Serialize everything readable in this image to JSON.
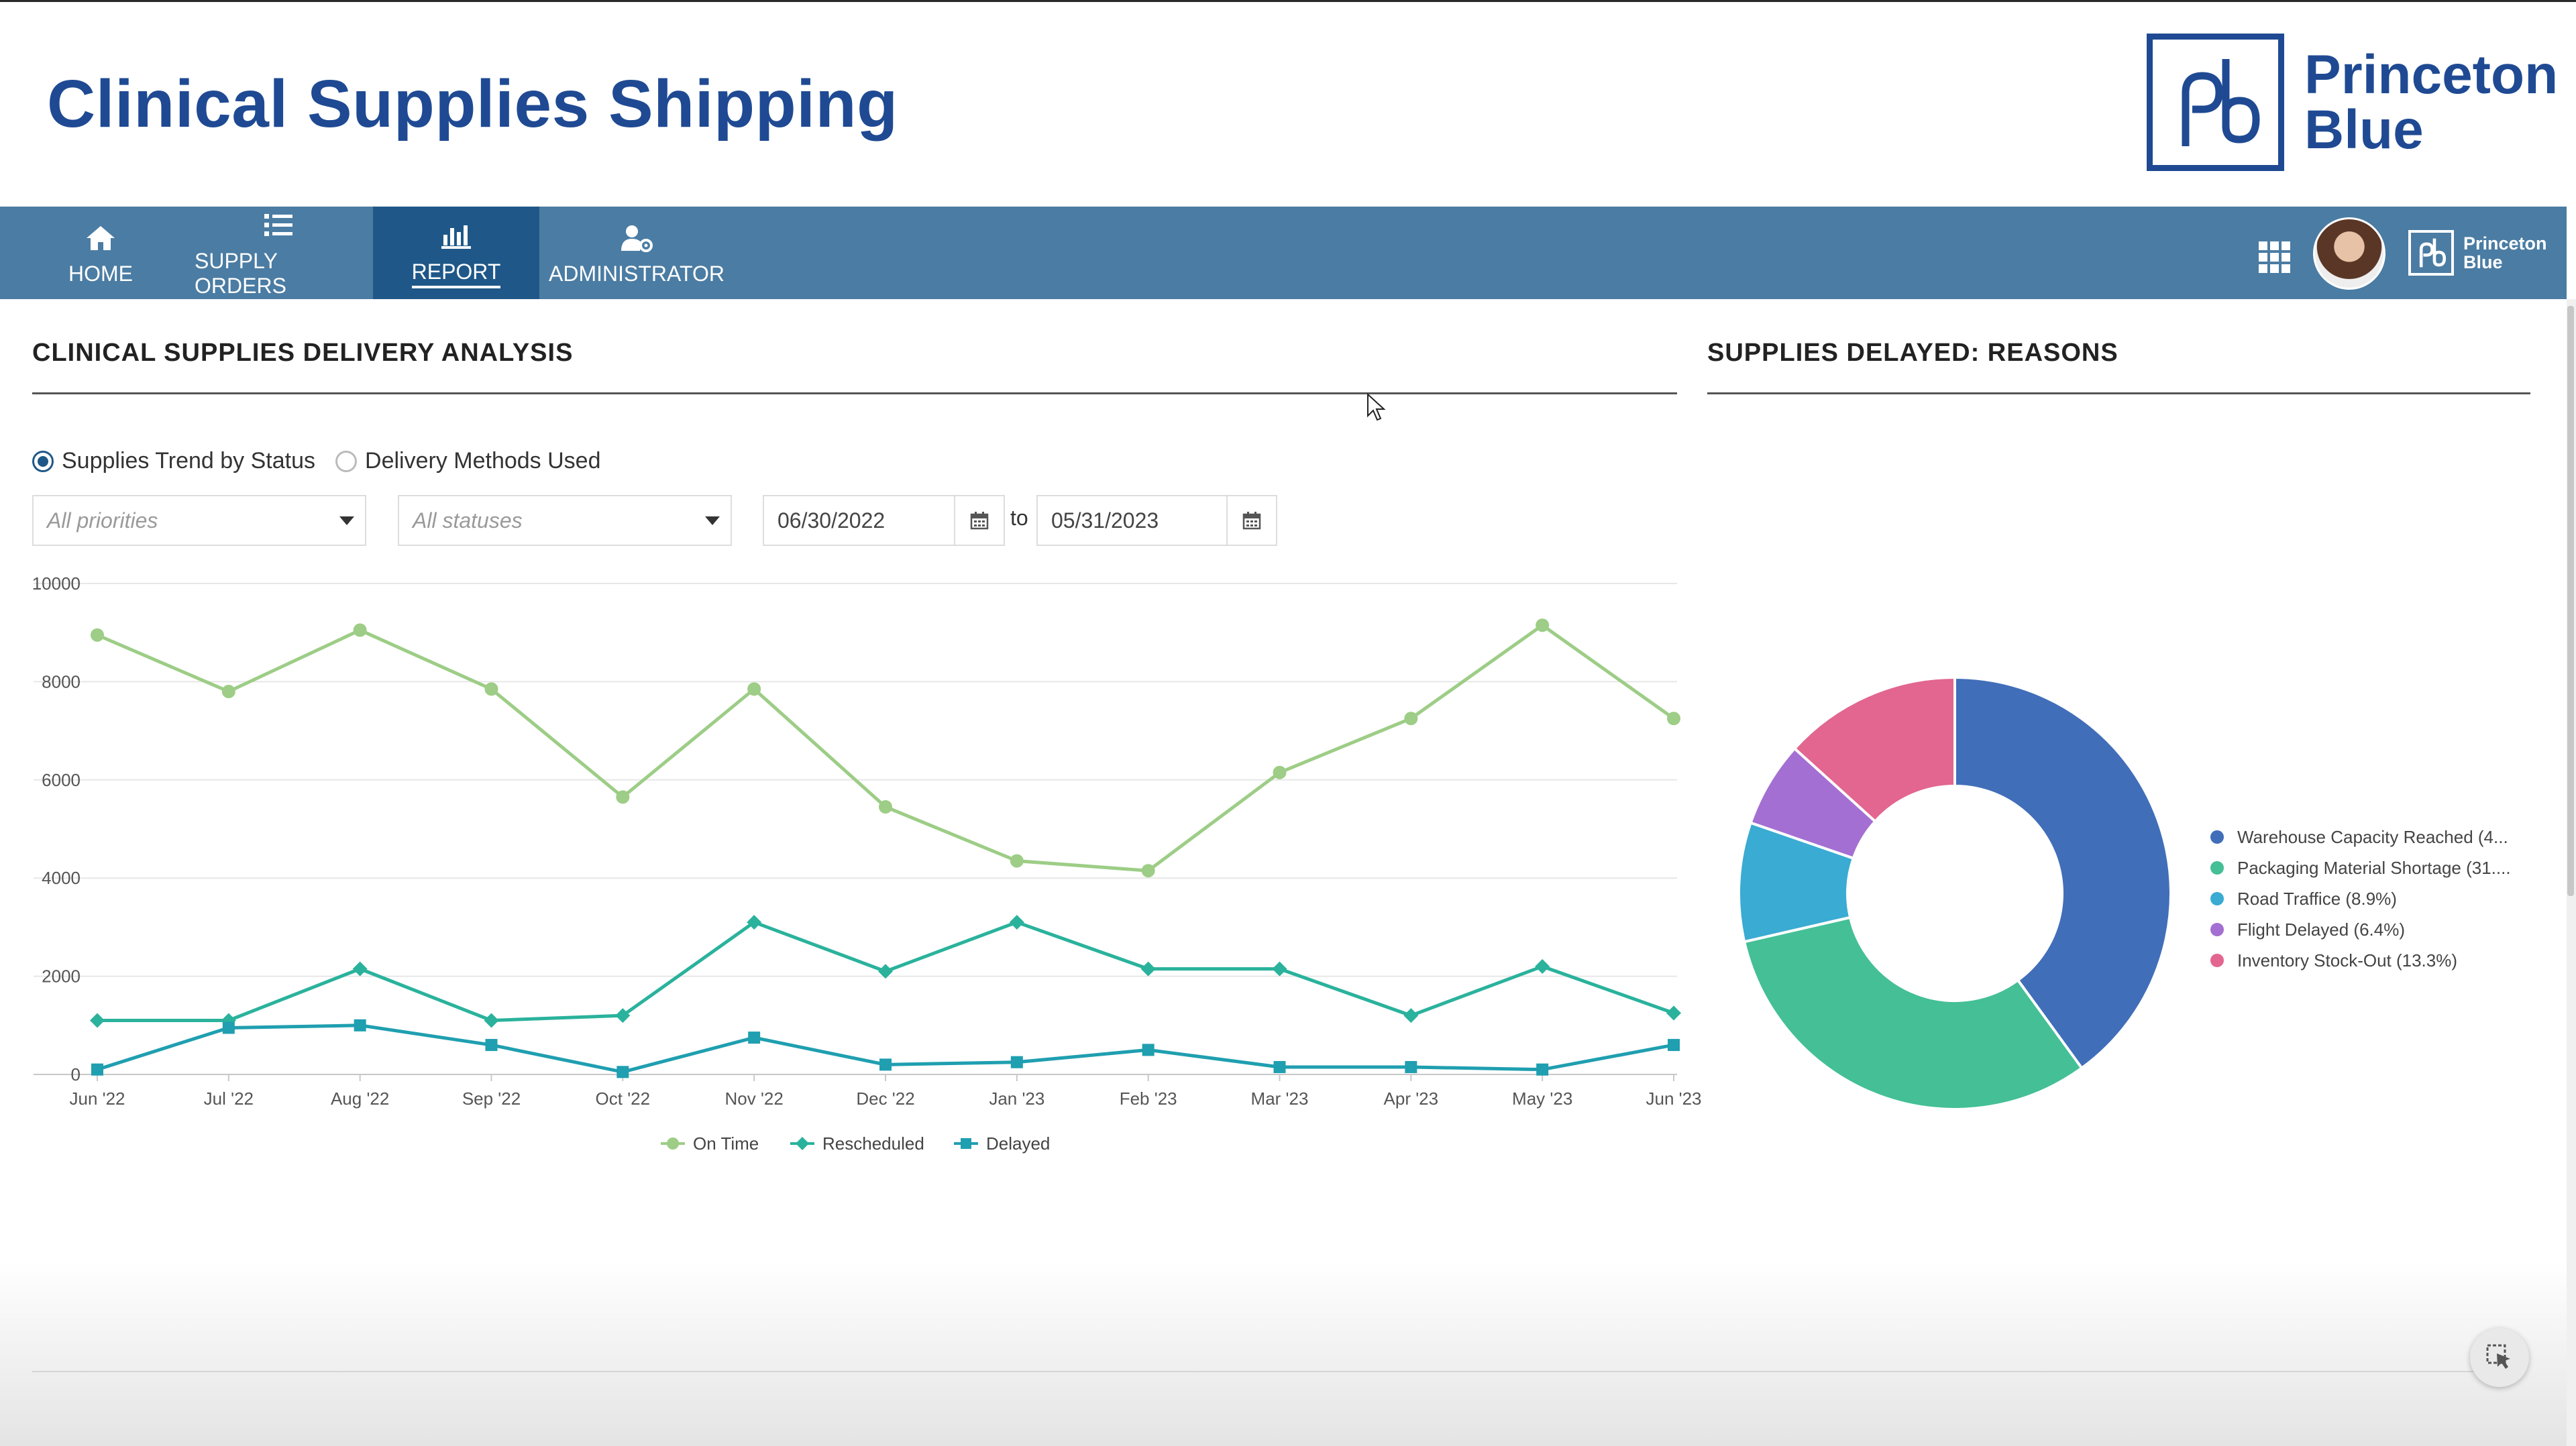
{
  "app": {
    "title": "Clinical Supplies Shipping",
    "brand": [
      "Princeton",
      "Blue"
    ]
  },
  "nav": {
    "items": [
      {
        "label": "HOME",
        "icon": "home-icon",
        "active": false
      },
      {
        "label": "SUPPLY ORDERS",
        "icon": "list-icon",
        "active": false
      },
      {
        "label": "REPORT",
        "icon": "bar-chart-icon",
        "active": true
      },
      {
        "label": "ADMINISTRATOR",
        "icon": "user-gear-icon",
        "active": false
      }
    ],
    "right": {
      "apps_icon": "grid-icon",
      "avatar": "avatar",
      "brand": [
        "Princeton",
        "Blue"
      ]
    }
  },
  "analysis": {
    "title": "CLINICAL SUPPLIES DELIVERY ANALYSIS",
    "view_options": [
      {
        "label": "Supplies Trend by Status",
        "checked": true
      },
      {
        "label": "Delivery Methods Used",
        "checked": false
      }
    ],
    "priority_placeholder": "All priorities",
    "status_placeholder": "All statuses",
    "date_from": "06/30/2022",
    "date_to_label": "to",
    "date_to": "05/31/2023"
  },
  "reasons": {
    "title": "SUPPLIES DELAYED: REASONS"
  },
  "chart_data": [
    {
      "type": "line",
      "categories": [
        "Jun '22",
        "Jul '22",
        "Aug '22",
        "Sep '22",
        "Oct '22",
        "Nov '22",
        "Dec '22",
        "Jan '23",
        "Feb '23",
        "Mar '23",
        "Apr '23",
        "May '23",
        "Jun '23"
      ],
      "ylim": [
        0,
        10000
      ],
      "yticks": [
        0,
        2000,
        4000,
        6000,
        8000,
        10000
      ],
      "grid": true,
      "legend_position": "bottom",
      "series": [
        {
          "name": "On Time",
          "color": "#9dcd86",
          "marker": "circle",
          "values": [
            8950,
            7800,
            9050,
            7850,
            5650,
            7850,
            5450,
            4350,
            4150,
            6150,
            7250,
            9150,
            7250
          ]
        },
        {
          "name": "Rescheduled",
          "color": "#2ab29c",
          "marker": "diamond",
          "values": [
            1100,
            1100,
            2150,
            1100,
            1200,
            3100,
            2100,
            3100,
            2150,
            2150,
            1200,
            2200,
            1250
          ]
        },
        {
          "name": "Delayed",
          "color": "#1f9fb0",
          "marker": "square",
          "values": [
            100,
            950,
            1000,
            600,
            50,
            750,
            200,
            250,
            500,
            150,
            150,
            100,
            600
          ]
        }
      ]
    },
    {
      "type": "pie",
      "donut": true,
      "legend_position": "right",
      "slices": [
        {
          "label": "Warehouse Capacity Reached (4...",
          "value": 40.0,
          "color": "#416eb9"
        },
        {
          "label": "Packaging Material Shortage (31....",
          "value": 31.4,
          "color": "#44bf96"
        },
        {
          "label": "Road Traffice (8.9%)",
          "value": 8.9,
          "color": "#3aabd2"
        },
        {
          "label": "Flight Delayed (6.4%)",
          "value": 6.4,
          "color": "#a46fd2"
        },
        {
          "label": "Inventory Stock-Out (13.3%)",
          "value": 13.3,
          "color": "#e2668f"
        }
      ]
    }
  ]
}
